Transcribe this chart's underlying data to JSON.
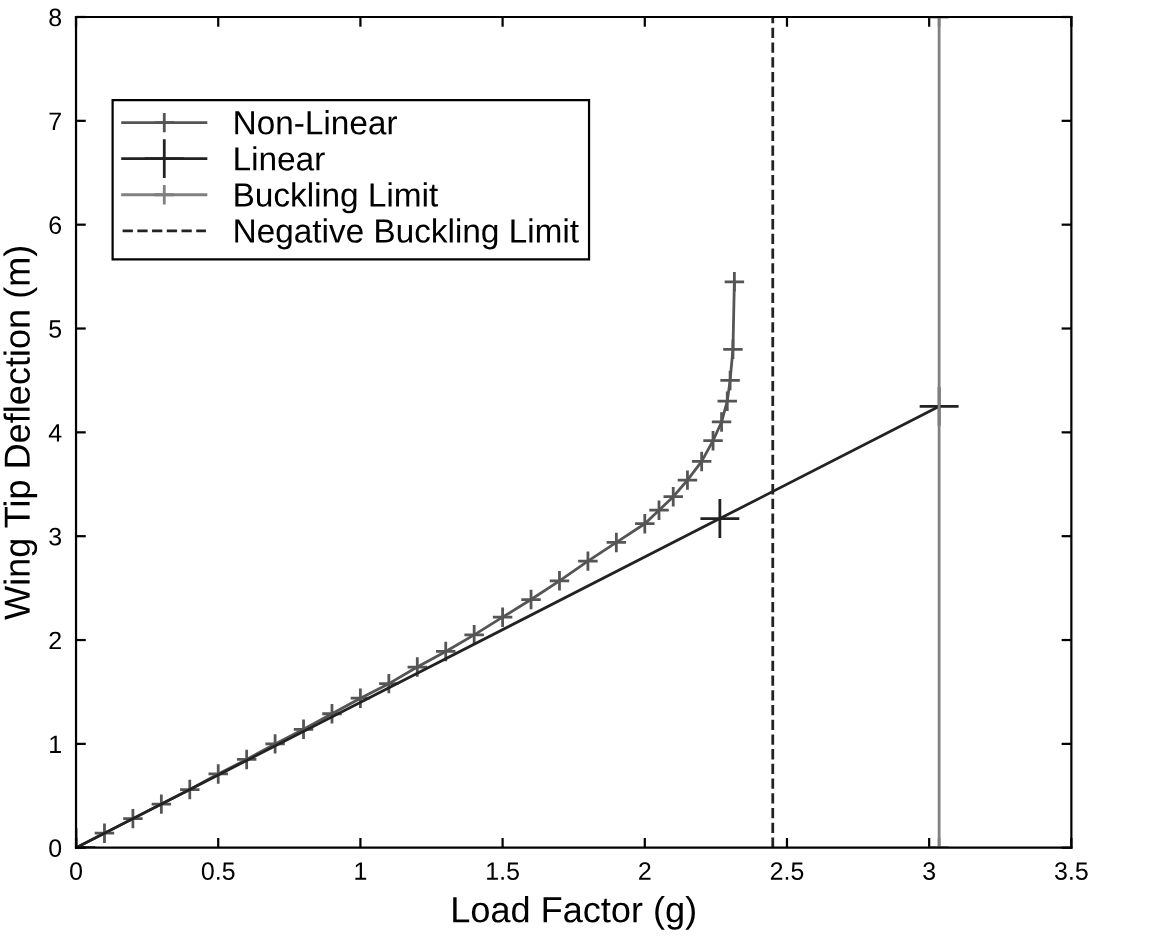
{
  "chart_data": {
    "type": "line",
    "xlabel": "Load Factor (g)",
    "ylabel": "Wing Tip Deflection (m)",
    "xlim": [
      0,
      3.5
    ],
    "ylim": [
      0,
      8
    ],
    "xticks": [
      0,
      0.5,
      1,
      1.5,
      2,
      2.5,
      3,
      3.5
    ],
    "yticks": [
      0,
      1,
      2,
      3,
      4,
      5,
      6,
      7,
      8
    ],
    "grid": false,
    "legend": "top left",
    "series": [
      {
        "name": "Non-Linear",
        "color": "#555555",
        "marker": "cross",
        "line_style": "solid",
        "x": [
          0,
          0.1,
          0.2,
          0.3,
          0.4,
          0.5,
          0.6,
          0.7,
          0.8,
          0.9,
          1.0,
          1.1,
          1.2,
          1.3,
          1.4,
          1.5,
          1.6,
          1.7,
          1.8,
          1.9,
          2.0,
          2.05,
          2.1,
          2.15,
          2.2,
          2.24,
          2.27,
          2.29,
          2.3,
          2.31,
          2.315
        ],
        "values": [
          0,
          0.14,
          0.28,
          0.42,
          0.56,
          0.71,
          0.85,
          1.0,
          1.14,
          1.29,
          1.44,
          1.58,
          1.74,
          1.89,
          2.05,
          2.22,
          2.39,
          2.57,
          2.76,
          2.94,
          3.12,
          3.25,
          3.38,
          3.54,
          3.72,
          3.92,
          4.1,
          4.3,
          4.5,
          4.8,
          5.45
        ]
      },
      {
        "name": "Linear",
        "color": "#222222",
        "marker": "cross",
        "line_style": "solid",
        "x": [
          0,
          2.264,
          3.035
        ],
        "values": [
          0,
          3.17,
          4.25
        ]
      },
      {
        "name": "Buckling Limit",
        "color": "#808080",
        "marker": "cross",
        "line_style": "solid",
        "x": [
          3.035,
          3.035
        ],
        "values": [
          0,
          8
        ]
      },
      {
        "name": "Negative Buckling Limit",
        "color": "#222222",
        "marker": "none",
        "line_style": "dashed",
        "x": [
          2.45,
          2.45
        ],
        "values": [
          0,
          8
        ]
      }
    ]
  }
}
